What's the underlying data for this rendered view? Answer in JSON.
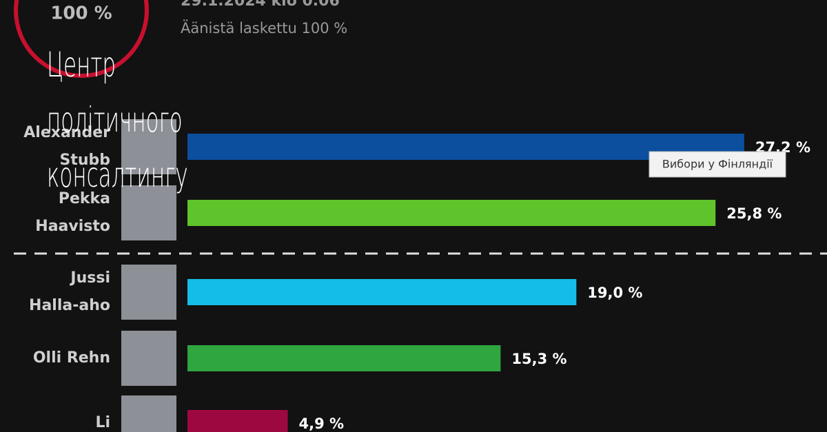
{
  "header": {
    "percent_counted_badge": "100 %",
    "timestamp": "29.1.2024 klo 0.06",
    "counted": "Äänistä laskettu 100 %"
  },
  "chart_data": {
    "type": "bar",
    "orientation": "horizontal",
    "categories": [
      [
        "Alexander",
        "Stubb"
      ],
      [
        "Pekka",
        "Haavisto"
      ],
      [
        "Jussi",
        "Halla-aho"
      ],
      [
        "Olli Rehn"
      ],
      [
        "Li"
      ]
    ],
    "values": [
      27.2,
      25.8,
      19.0,
      15.3,
      4.9
    ],
    "value_labels": [
      "27,2 %",
      "25,8 %",
      "19,0 %",
      "15,3 %",
      "4,9 %"
    ],
    "colors": [
      "#0b4f9e",
      "#5fc42b",
      "#14bde8",
      "#2fa63f",
      "#9e0840"
    ]
  },
  "overlay": {
    "watermark": [
      "Центр",
      "політичного",
      "консалтингу"
    ],
    "tooltip": "Вибори у Фінляндії"
  }
}
